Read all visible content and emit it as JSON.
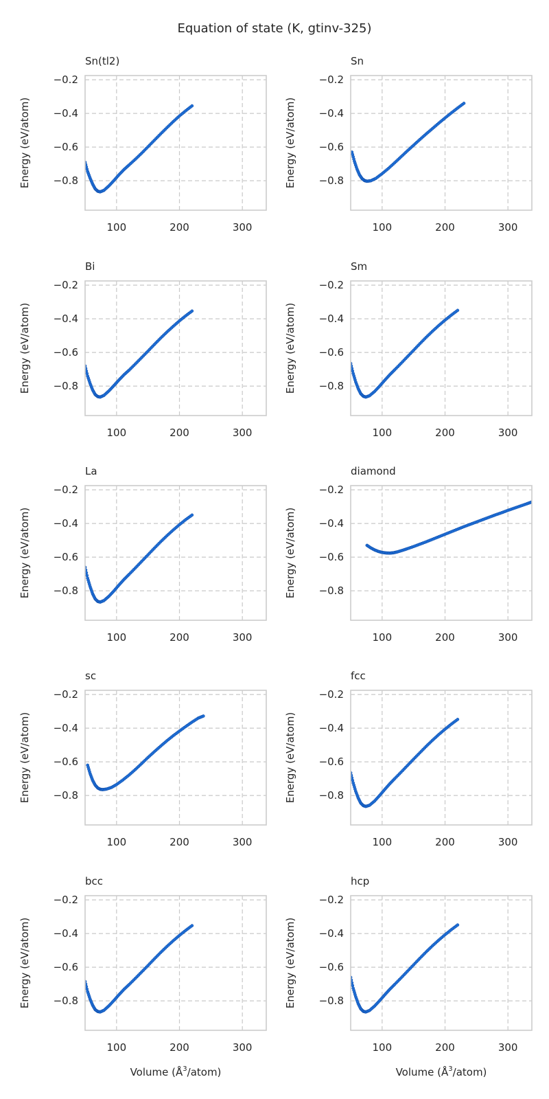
{
  "figure": {
    "title": "Equation of state (K, gtinv-325)",
    "xlabel": "Volume (Å$^3$/atom)",
    "xlabel_text": "Volume (",
    "xlabel_angstrom": "Å",
    "xlabel_sup": "3",
    "xlabel_tail": "/atom)",
    "ylabel": "Energy (eV/atom)",
    "colors": {
      "points": "#1f6fd6",
      "grid": "#c8c8c8",
      "frame": "#cccccc",
      "text": "#262626"
    }
  },
  "chart_data": [
    {
      "type": "scatter",
      "title": "Sn(tl2)",
      "xlabel": "",
      "ylabel": "Energy (eV/atom)",
      "xlim": [
        50,
        338
      ],
      "ylim": [
        -0.975,
        -0.175
      ],
      "xticks": [
        100,
        200,
        300
      ],
      "yticks": [
        -0.2,
        -0.4,
        -0.6,
        -0.8
      ],
      "xticklabels": [
        "100",
        "200",
        "300"
      ],
      "yticklabels": [
        "−0.2",
        "−0.4",
        "−0.6",
        "−0.8"
      ],
      "grid": true,
      "series": [
        {
          "x": [
            50,
            54,
            58,
            62,
            66,
            70,
            74,
            80,
            88,
            96,
            104,
            112,
            120,
            130,
            140,
            150,
            160,
            170,
            180,
            190,
            200,
            210,
            220
          ],
          "y": [
            -0.69,
            -0.745,
            -0.785,
            -0.82,
            -0.848,
            -0.862,
            -0.866,
            -0.857,
            -0.83,
            -0.798,
            -0.764,
            -0.733,
            -0.706,
            -0.672,
            -0.636,
            -0.598,
            -0.56,
            -0.522,
            -0.485,
            -0.449,
            -0.415,
            -0.384,
            -0.355
          ]
        }
      ]
    },
    {
      "type": "scatter",
      "title": "Sn",
      "xlabel": "",
      "ylabel": "Energy (eV/atom)",
      "xlim": [
        50,
        338
      ],
      "ylim": [
        -0.975,
        -0.175
      ],
      "xticks": [
        100,
        200,
        300
      ],
      "yticks": [
        -0.2,
        -0.4,
        -0.6,
        -0.8
      ],
      "xticklabels": [
        "100",
        "200",
        "300"
      ],
      "yticklabels": [
        "−0.2",
        "−0.4",
        "−0.6",
        "−0.8"
      ],
      "grid": true,
      "series": [
        {
          "x": [
            52,
            56,
            60,
            64,
            68,
            72,
            76,
            82,
            90,
            100,
            110,
            120,
            130,
            140,
            150,
            160,
            170,
            180,
            190,
            200,
            210,
            220,
            230
          ],
          "y": [
            -0.63,
            -0.685,
            -0.73,
            -0.765,
            -0.787,
            -0.799,
            -0.803,
            -0.8,
            -0.786,
            -0.758,
            -0.727,
            -0.693,
            -0.658,
            -0.623,
            -0.589,
            -0.555,
            -0.522,
            -0.49,
            -0.458,
            -0.427,
            -0.397,
            -0.368,
            -0.34
          ]
        }
      ]
    },
    {
      "type": "scatter",
      "title": "Bi",
      "xlabel": "",
      "ylabel": "Energy (eV/atom)",
      "xlim": [
        50,
        338
      ],
      "ylim": [
        -0.975,
        -0.175
      ],
      "xticks": [
        100,
        200,
        300
      ],
      "yticks": [
        -0.2,
        -0.4,
        -0.6,
        -0.8
      ],
      "xticklabels": [
        "100",
        "200",
        "300"
      ],
      "yticklabels": [
        "−0.2",
        "−0.4",
        "−0.6",
        "−0.8"
      ],
      "grid": true,
      "series": [
        {
          "x": [
            50,
            54,
            58,
            62,
            66,
            70,
            74,
            80,
            88,
            96,
            104,
            112,
            120,
            130,
            140,
            150,
            160,
            170,
            180,
            190,
            200,
            210,
            220
          ],
          "y": [
            -0.68,
            -0.74,
            -0.785,
            -0.823,
            -0.85,
            -0.862,
            -0.865,
            -0.855,
            -0.828,
            -0.796,
            -0.763,
            -0.732,
            -0.705,
            -0.668,
            -0.63,
            -0.592,
            -0.553,
            -0.515,
            -0.479,
            -0.445,
            -0.412,
            -0.382,
            -0.354
          ]
        }
      ]
    },
    {
      "type": "scatter",
      "title": "Sm",
      "xlabel": "",
      "ylabel": "Energy (eV/atom)",
      "xlim": [
        50,
        338
      ],
      "ylim": [
        -0.975,
        -0.175
      ],
      "xticks": [
        100,
        200,
        300
      ],
      "yticks": [
        -0.2,
        -0.4,
        -0.6,
        -0.8
      ],
      "xticklabels": [
        "100",
        "200",
        "300"
      ],
      "yticklabels": [
        "−0.2",
        "−0.4",
        "−0.6",
        "−0.8"
      ],
      "grid": true,
      "series": [
        {
          "x": [
            50,
            54,
            58,
            62,
            66,
            70,
            74,
            80,
            88,
            96,
            104,
            112,
            120,
            130,
            140,
            150,
            160,
            170,
            180,
            190,
            200,
            210,
            220
          ],
          "y": [
            -0.665,
            -0.725,
            -0.775,
            -0.815,
            -0.845,
            -0.86,
            -0.865,
            -0.857,
            -0.832,
            -0.8,
            -0.766,
            -0.733,
            -0.703,
            -0.665,
            -0.626,
            -0.587,
            -0.548,
            -0.51,
            -0.474,
            -0.44,
            -0.408,
            -0.378,
            -0.35
          ]
        }
      ]
    },
    {
      "type": "scatter",
      "title": "La",
      "xlabel": "",
      "ylabel": "Energy (eV/atom)",
      "xlim": [
        50,
        338
      ],
      "ylim": [
        -0.975,
        -0.175
      ],
      "xticks": [
        100,
        200,
        300
      ],
      "yticks": [
        -0.2,
        -0.4,
        -0.6,
        -0.8
      ],
      "xticklabels": [
        "100",
        "200",
        "300"
      ],
      "yticklabels": [
        "−0.2",
        "−0.4",
        "−0.6",
        "−0.8"
      ],
      "grid": true,
      "series": [
        {
          "x": [
            50,
            54,
            58,
            62,
            66,
            70,
            74,
            80,
            88,
            96,
            104,
            112,
            120,
            130,
            140,
            150,
            160,
            170,
            180,
            190,
            200,
            210,
            220
          ],
          "y": [
            -0.66,
            -0.725,
            -0.775,
            -0.818,
            -0.848,
            -0.863,
            -0.867,
            -0.858,
            -0.832,
            -0.8,
            -0.765,
            -0.732,
            -0.702,
            -0.664,
            -0.625,
            -0.586,
            -0.547,
            -0.509,
            -0.473,
            -0.439,
            -0.407,
            -0.377,
            -0.35
          ]
        }
      ]
    },
    {
      "type": "scatter",
      "title": "diamond",
      "xlabel": "",
      "ylabel": "Energy (eV/atom)",
      "xlim": [
        50,
        338
      ],
      "ylim": [
        -0.975,
        -0.175
      ],
      "xticks": [
        100,
        200,
        300
      ],
      "yticks": [
        -0.2,
        -0.4,
        -0.6,
        -0.8
      ],
      "xticklabels": [
        "100",
        "200",
        "300"
      ],
      "yticklabels": [
        "−0.2",
        "−0.4",
        "−0.6",
        "−0.8"
      ],
      "grid": true,
      "series": [
        {
          "x": [
            76,
            82,
            88,
            94,
            100,
            106,
            112,
            118,
            124,
            132,
            140,
            150,
            160,
            170,
            180,
            190,
            200,
            210,
            220,
            230,
            240,
            250,
            260,
            270,
            280,
            290,
            300,
            310,
            320,
            330,
            338
          ],
          "y": [
            -0.53,
            -0.545,
            -0.557,
            -0.566,
            -0.572,
            -0.575,
            -0.576,
            -0.574,
            -0.569,
            -0.56,
            -0.55,
            -0.537,
            -0.523,
            -0.509,
            -0.494,
            -0.479,
            -0.464,
            -0.449,
            -0.434,
            -0.419,
            -0.405,
            -0.391,
            -0.377,
            -0.363,
            -0.349,
            -0.336,
            -0.322,
            -0.309,
            -0.296,
            -0.283,
            -0.272
          ]
        }
      ]
    },
    {
      "type": "scatter",
      "title": "sc",
      "xlabel": "",
      "ylabel": "Energy (eV/atom)",
      "xlim": [
        50,
        338
      ],
      "ylim": [
        -0.975,
        -0.175
      ],
      "xticks": [
        100,
        200,
        300
      ],
      "yticks": [
        -0.2,
        -0.4,
        -0.6,
        -0.8
      ],
      "xticklabels": [
        "100",
        "200",
        "300"
      ],
      "yticklabels": [
        "−0.2",
        "−0.4",
        "−0.6",
        "−0.8"
      ],
      "grid": true,
      "series": [
        {
          "x": [
            54,
            58,
            62,
            66,
            70,
            74,
            78,
            84,
            92,
            100,
            110,
            120,
            130,
            140,
            150,
            160,
            170,
            180,
            190,
            200,
            210,
            220,
            230,
            238
          ],
          "y": [
            -0.62,
            -0.67,
            -0.71,
            -0.738,
            -0.755,
            -0.763,
            -0.765,
            -0.762,
            -0.752,
            -0.735,
            -0.708,
            -0.678,
            -0.645,
            -0.61,
            -0.574,
            -0.54,
            -0.507,
            -0.475,
            -0.445,
            -0.417,
            -0.39,
            -0.364,
            -0.34,
            -0.328
          ]
        }
      ]
    },
    {
      "type": "scatter",
      "title": "fcc",
      "xlabel": "",
      "ylabel": "Energy (eV/atom)",
      "xlim": [
        50,
        338
      ],
      "ylim": [
        -0.975,
        -0.175
      ],
      "xticks": [
        100,
        200,
        300
      ],
      "yticks": [
        -0.2,
        -0.4,
        -0.6,
        -0.8
      ],
      "xticklabels": [
        "100",
        "200",
        "300"
      ],
      "yticklabels": [
        "−0.2",
        "−0.4",
        "−0.6",
        "−0.8"
      ],
      "grid": true,
      "series": [
        {
          "x": [
            50,
            54,
            58,
            62,
            66,
            70,
            74,
            80,
            88,
            96,
            104,
            112,
            120,
            130,
            140,
            150,
            160,
            170,
            180,
            190,
            200,
            210,
            220
          ],
          "y": [
            -0.665,
            -0.725,
            -0.775,
            -0.815,
            -0.845,
            -0.86,
            -0.865,
            -0.858,
            -0.833,
            -0.8,
            -0.765,
            -0.731,
            -0.7,
            -0.662,
            -0.623,
            -0.584,
            -0.546,
            -0.508,
            -0.472,
            -0.438,
            -0.406,
            -0.376,
            -0.348
          ]
        }
      ]
    },
    {
      "type": "scatter",
      "title": "bcc",
      "xlabel": "Volume (Å³/atom)",
      "ylabel": "Energy (eV/atom)",
      "xlim": [
        50,
        338
      ],
      "ylim": [
        -0.975,
        -0.175
      ],
      "xticks": [
        100,
        200,
        300
      ],
      "yticks": [
        -0.2,
        -0.4,
        -0.6,
        -0.8
      ],
      "xticklabels": [
        "100",
        "200",
        "300"
      ],
      "yticklabels": [
        "−0.2",
        "−0.4",
        "−0.6",
        "−0.8"
      ],
      "grid": true,
      "series": [
        {
          "x": [
            50,
            54,
            58,
            62,
            66,
            70,
            74,
            80,
            88,
            96,
            104,
            112,
            120,
            130,
            140,
            150,
            160,
            170,
            180,
            190,
            200,
            210,
            220
          ],
          "y": [
            -0.685,
            -0.745,
            -0.79,
            -0.826,
            -0.852,
            -0.863,
            -0.866,
            -0.856,
            -0.829,
            -0.797,
            -0.763,
            -0.731,
            -0.703,
            -0.666,
            -0.628,
            -0.59,
            -0.551,
            -0.513,
            -0.477,
            -0.443,
            -0.411,
            -0.381,
            -0.353
          ]
        }
      ]
    },
    {
      "type": "scatter",
      "title": "hcp",
      "xlabel": "Volume (Å³/atom)",
      "ylabel": "Energy (eV/atom)",
      "xlim": [
        50,
        338
      ],
      "ylim": [
        -0.975,
        -0.175
      ],
      "xticks": [
        100,
        200,
        300
      ],
      "yticks": [
        -0.2,
        -0.4,
        -0.6,
        -0.8
      ],
      "xticklabels": [
        "100",
        "200",
        "300"
      ],
      "yticklabels": [
        "−0.2",
        "−0.4",
        "−0.6",
        "−0.8"
      ],
      "grid": true,
      "series": [
        {
          "x": [
            50,
            54,
            58,
            62,
            66,
            70,
            74,
            80,
            88,
            96,
            104,
            112,
            120,
            130,
            140,
            150,
            160,
            170,
            180,
            190,
            200,
            210,
            220
          ],
          "y": [
            -0.66,
            -0.725,
            -0.775,
            -0.817,
            -0.847,
            -0.862,
            -0.866,
            -0.857,
            -0.831,
            -0.799,
            -0.765,
            -0.732,
            -0.702,
            -0.664,
            -0.625,
            -0.586,
            -0.547,
            -0.509,
            -0.473,
            -0.439,
            -0.407,
            -0.377,
            -0.349
          ]
        }
      ]
    }
  ]
}
